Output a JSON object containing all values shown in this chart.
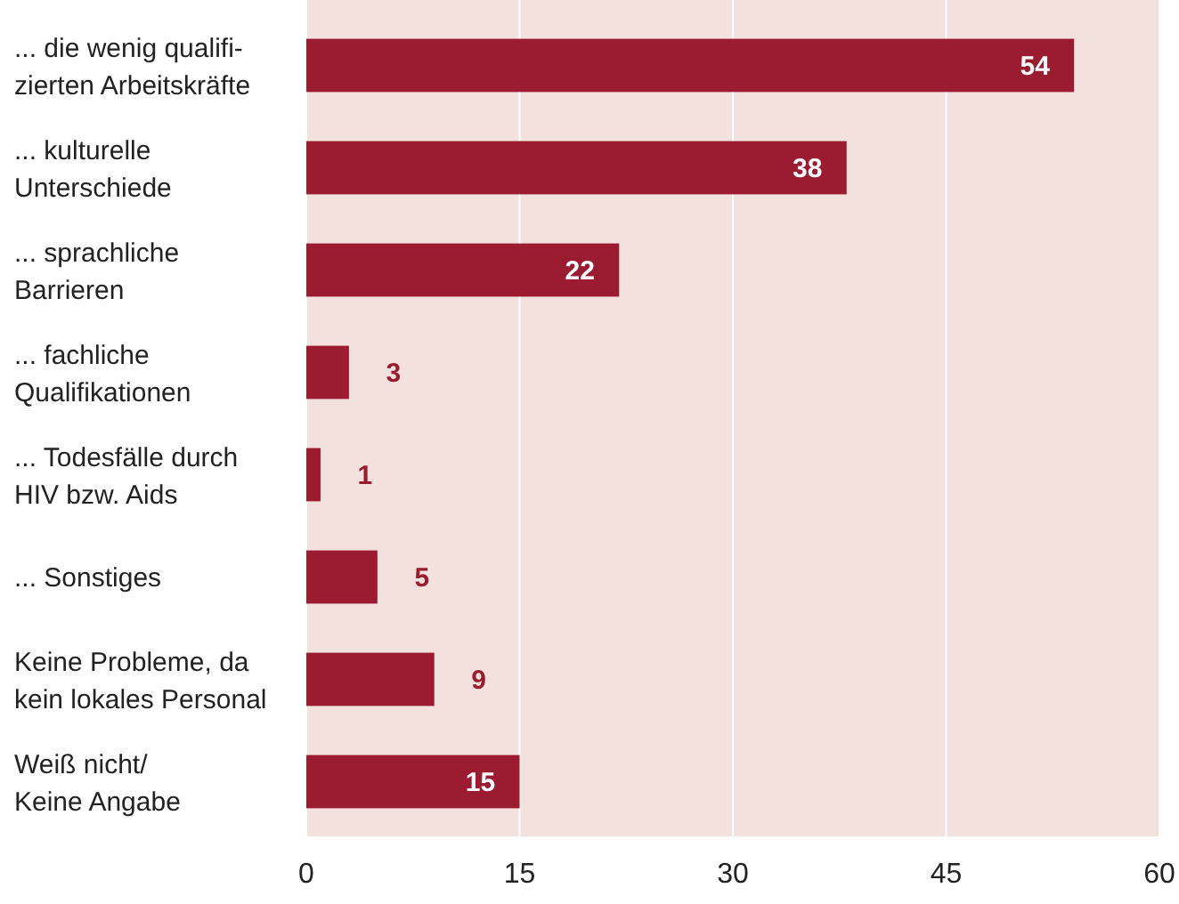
{
  "chart_data": {
    "type": "bar",
    "orientation": "horizontal",
    "categories": [
      "... die wenig qualifi-\nzierten Arbeitskräfte",
      "... kulturelle\nUnterschiede",
      "... sprachliche\nBarrieren",
      "... fachliche\nQualifikationen",
      "... Todesfälle durch\nHIV bzw. Aids",
      "... Sonstiges",
      "Keine Probleme, da\nkein lokales Personal",
      "Weiß nicht/\nKeine Angabe"
    ],
    "values": [
      54,
      38,
      22,
      3,
      1,
      5,
      9,
      15
    ],
    "color": "#9b1b30",
    "xlim": [
      0,
      60
    ],
    "xticks": [
      0,
      15,
      30,
      45,
      60
    ],
    "grid": "x",
    "data_labels": true
  }
}
